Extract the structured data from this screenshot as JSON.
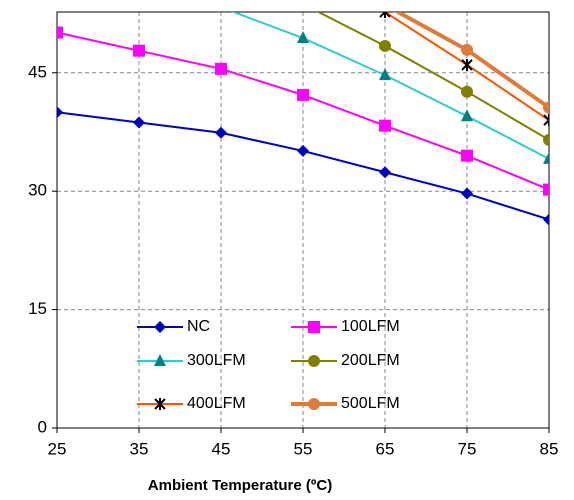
{
  "chart_data": {
    "type": "line",
    "xlabel": "Ambient Temperature (ºC)",
    "x": [
      25,
      35,
      45,
      55,
      65,
      75,
      85
    ],
    "xlim": [
      25,
      85
    ],
    "xticks": [
      25,
      35,
      45,
      55,
      65,
      75,
      85
    ],
    "ylim": [
      0,
      52.7
    ],
    "yticks": [
      0,
      15,
      30,
      45
    ],
    "grid": true,
    "legend": "lower center",
    "series": [
      {
        "name": "NC",
        "color": "#0000c0",
        "marker": "diamond",
        "line_width": 2,
        "values": [
          40.0,
          38.7,
          37.4,
          35.1,
          32.4,
          29.7,
          26.4
        ]
      },
      {
        "name": "100LFM",
        "color": "#ff00ff",
        "marker": "square",
        "line_width": 2,
        "values": [
          50.1,
          47.8,
          45.5,
          42.2,
          38.3,
          34.5,
          30.2
        ]
      },
      {
        "name": "300LFM",
        "color": "#33cccc",
        "marker_color": "#008080",
        "marker": "triangle",
        "line_width": 2,
        "values": [
          null,
          null,
          53.3,
          49.4,
          44.7,
          39.5,
          34.1
        ]
      },
      {
        "name": "200LFM",
        "color": "#808000",
        "marker": "circle",
        "line_width": 2,
        "values": [
          null,
          null,
          null,
          53.7,
          48.4,
          42.6,
          36.5
        ]
      },
      {
        "name": "400LFM",
        "color": "#ff5500",
        "marker_color": "#000000",
        "marker": "asterisk",
        "line_width": 2,
        "values": [
          null,
          null,
          null,
          null,
          52.7,
          46.0,
          39.0
        ]
      },
      {
        "name": "500LFM",
        "color": "#e07a3a",
        "marker": "circle",
        "line_width": 4,
        "values": [
          null,
          null,
          null,
          null,
          53.6,
          47.9,
          40.6
        ]
      }
    ]
  }
}
